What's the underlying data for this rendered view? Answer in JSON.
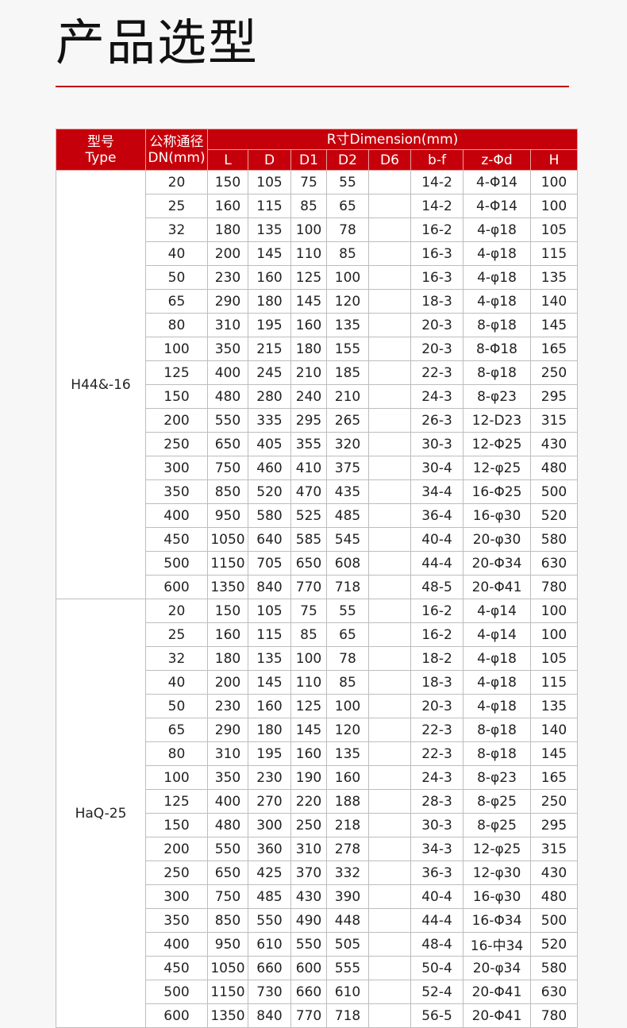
{
  "title": "产品选型",
  "table": {
    "header": {
      "type_cn": "型号",
      "type_en": "Type",
      "dn_cn": "公称通径",
      "dn_en": "DN(mm)",
      "dimension": "R寸Dimension(mm)",
      "columns": [
        "L",
        "D",
        "D1",
        "D2",
        "D6",
        "b-f",
        "z-Φd",
        "H"
      ]
    },
    "groups": [
      {
        "type": "H44&-16",
        "rows": [
          [
            "20",
            "150",
            "105",
            "75",
            "55",
            "",
            "14-2",
            "4-Φ14",
            "100"
          ],
          [
            "25",
            "160",
            "115",
            "85",
            "65",
            "",
            "14-2",
            "4-Φ14",
            "100"
          ],
          [
            "32",
            "180",
            "135",
            "100",
            "78",
            "",
            "16-2",
            "4-φ18",
            "105"
          ],
          [
            "40",
            "200",
            "145",
            "110",
            "85",
            "",
            "16-3",
            "4-φ18",
            "115"
          ],
          [
            "50",
            "230",
            "160",
            "125",
            "100",
            "",
            "16-3",
            "4-φ18",
            "135"
          ],
          [
            "65",
            "290",
            "180",
            "145",
            "120",
            "",
            "18-3",
            "4-φ18",
            "140"
          ],
          [
            "80",
            "310",
            "195",
            "160",
            "135",
            "",
            "20-3",
            "8-φ18",
            "145"
          ],
          [
            "100",
            "350",
            "215",
            "180",
            "155",
            "",
            "20-3",
            "8-Φ18",
            "165"
          ],
          [
            "125",
            "400",
            "245",
            "210",
            "185",
            "",
            "22-3",
            "8-φ18",
            "250"
          ],
          [
            "150",
            "480",
            "280",
            "240",
            "210",
            "",
            "24-3",
            "8-φ23",
            "295"
          ],
          [
            "200",
            "550",
            "335",
            "295",
            "265",
            "",
            "26-3",
            "12-D23",
            "315"
          ],
          [
            "250",
            "650",
            "405",
            "355",
            "320",
            "",
            "30-3",
            "12-Φ25",
            "430"
          ],
          [
            "300",
            "750",
            "460",
            "410",
            "375",
            "",
            "30-4",
            "12-φ25",
            "480"
          ],
          [
            "350",
            "850",
            "520",
            "470",
            "435",
            "",
            "34-4",
            "16-Φ25",
            "500"
          ],
          [
            "400",
            "950",
            "580",
            "525",
            "485",
            "",
            "36-4",
            "16-φ30",
            "520"
          ],
          [
            "450",
            "1050",
            "640",
            "585",
            "545",
            "",
            "40-4",
            "20-φ30",
            "580"
          ],
          [
            "500",
            "1150",
            "705",
            "650",
            "608",
            "",
            "44-4",
            "20-Φ34",
            "630"
          ],
          [
            "600",
            "1350",
            "840",
            "770",
            "718",
            "",
            "48-5",
            "20-Φ41",
            "780"
          ]
        ]
      },
      {
        "type": "HaQ-25",
        "rows": [
          [
            "20",
            "150",
            "105",
            "75",
            "55",
            "",
            "16-2",
            "4-φ14",
            "100"
          ],
          [
            "25",
            "160",
            "115",
            "85",
            "65",
            "",
            "16-2",
            "4-φ14",
            "100"
          ],
          [
            "32",
            "180",
            "135",
            "100",
            "78",
            "",
            "18-2",
            "4-φ18",
            "105"
          ],
          [
            "40",
            "200",
            "145",
            "110",
            "85",
            "",
            "18-3",
            "4-φ18",
            "115"
          ],
          [
            "50",
            "230",
            "160",
            "125",
            "100",
            "",
            "20-3",
            "4-φ18",
            "135"
          ],
          [
            "65",
            "290",
            "180",
            "145",
            "120",
            "",
            "22-3",
            "8-φ18",
            "140"
          ],
          [
            "80",
            "310",
            "195",
            "160",
            "135",
            "",
            "22-3",
            "8-φ18",
            "145"
          ],
          [
            "100",
            "350",
            "230",
            "190",
            "160",
            "",
            "24-3",
            "8-φ23",
            "165"
          ],
          [
            "125",
            "400",
            "270",
            "220",
            "188",
            "",
            "28-3",
            "8-φ25",
            "250"
          ],
          [
            "150",
            "480",
            "300",
            "250",
            "218",
            "",
            "30-3",
            "8-φ25",
            "295"
          ],
          [
            "200",
            "550",
            "360",
            "310",
            "278",
            "",
            "34-3",
            "12-φ25",
            "315"
          ],
          [
            "250",
            "650",
            "425",
            "370",
            "332",
            "",
            "36-3",
            "12-φ30",
            "430"
          ],
          [
            "300",
            "750",
            "485",
            "430",
            "390",
            "",
            "40-4",
            "16-φ30",
            "480"
          ],
          [
            "350",
            "850",
            "550",
            "490",
            "448",
            "",
            "44-4",
            "16-Φ34",
            "500"
          ],
          [
            "400",
            "950",
            "610",
            "550",
            "505",
            "",
            "48-4",
            "16-中34",
            "520"
          ],
          [
            "450",
            "1050",
            "660",
            "600",
            "555",
            "",
            "50-4",
            "20-φ34",
            "580"
          ],
          [
            "500",
            "1150",
            "730",
            "660",
            "610",
            "",
            "52-4",
            "20-Φ41",
            "630"
          ],
          [
            "600",
            "1350",
            "840",
            "770",
            "718",
            "",
            "56-5",
            "20-Φ41",
            "780"
          ]
        ]
      }
    ]
  },
  "colors": {
    "accent": "#c6000b"
  }
}
